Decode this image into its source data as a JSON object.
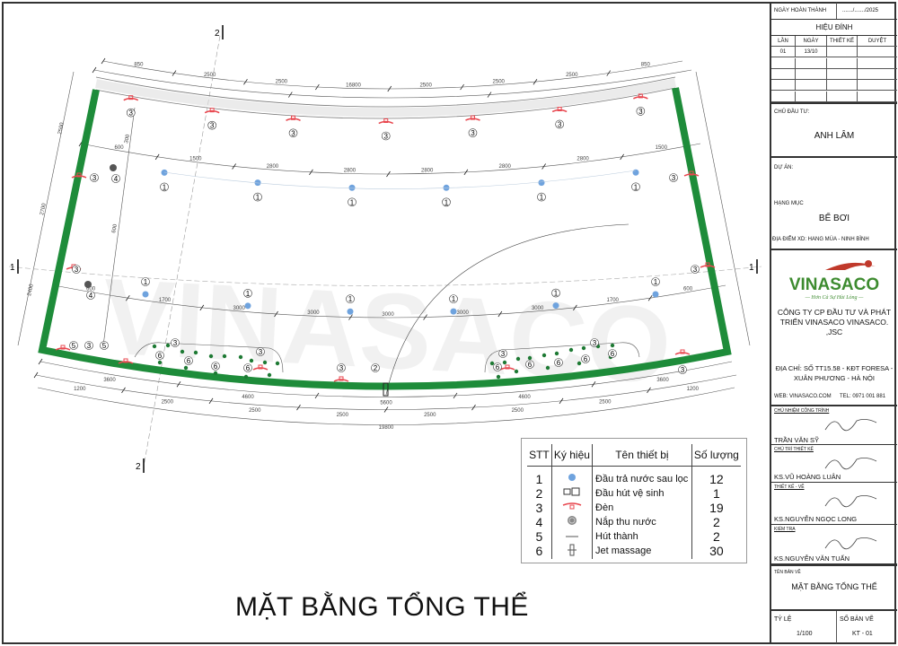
{
  "drawing": {
    "title": "MẶT BẰNG TỔNG THỂ",
    "section_marks": {
      "top": "2",
      "bottom": "2",
      "left": "1",
      "right": "1"
    },
    "dimensions_top": [
      "850",
      "2500",
      "2500",
      "16800",
      "2500",
      "2500",
      "2500",
      "850"
    ],
    "dimensions_inner": [
      "600",
      "1500",
      "2800",
      "2800",
      "2800",
      "2800",
      "2800",
      "1500"
    ],
    "dimensions_lower": [
      "600",
      "1700",
      "3000",
      "3000",
      "3000",
      "3000",
      "3000",
      "1700",
      "600"
    ],
    "dimensions_bottom": [
      "3600",
      "4600",
      "5600",
      "4600",
      "3600"
    ],
    "dimensions_bottom2": [
      "1200",
      "2500",
      "2500",
      "2500",
      "2500",
      "2500",
      "2500",
      "1200"
    ],
    "dimension_total": "19800",
    "dimensions_side": [
      "2500",
      "2700",
      "2400",
      "300",
      "600"
    ],
    "watermark": "VINASACO",
    "colors": {
      "wall": "#1e8c3a",
      "lamp": "#e8474f",
      "inlet": "#6fa3de",
      "jet": "#1e7a34",
      "drain": "#555555"
    }
  },
  "legend": {
    "headers": [
      "STT",
      "Ký hiệu",
      "Tên thiết bị",
      "Số lượng"
    ],
    "rows": [
      {
        "stt": "1",
        "icon": "inlet-icon",
        "name": "Đầu trả nước sau lọc",
        "qty": "12"
      },
      {
        "stt": "2",
        "icon": "vacuum-head-icon",
        "name": "Đầu hút vệ sinh",
        "qty": "1"
      },
      {
        "stt": "3",
        "icon": "lamp-icon",
        "name": "Đèn",
        "qty": "19"
      },
      {
        "stt": "4",
        "icon": "drain-cover-icon",
        "name": "Nắp thu nước",
        "qty": "2"
      },
      {
        "stt": "5",
        "icon": "skimmer-icon",
        "name": "Hút thành",
        "qty": "2"
      },
      {
        "stt": "6",
        "icon": "jet-icon",
        "name": "Jet massage",
        "qty": "30"
      }
    ]
  },
  "title_block": {
    "completion_label": "NGÀY HOÀN THÀNH",
    "completion_value": "......./......./2025",
    "revision_title": "HIỆU ĐÍNH",
    "revision_headers": [
      "LẦN",
      "NGÀY",
      "THIẾT KẾ",
      "DUYỆT"
    ],
    "revision_rows": [
      [
        "01",
        "13/10",
        "",
        ""
      ],
      [
        "",
        "",
        "",
        ""
      ],
      [
        "",
        "",
        "",
        ""
      ],
      [
        "",
        "",
        "",
        ""
      ],
      [
        "",
        "",
        "",
        ""
      ]
    ],
    "owner_label": "CHỦ ĐẦU TƯ:",
    "owner": "ANH LÂM",
    "project_label": "DỰ ÁN:",
    "item_label": "HẠNG MỤC",
    "item": "BỂ BƠI",
    "location": "ĐỊA ĐIỂM XD: HANG MÚA - NINH BÌNH",
    "logo_text": "VINASACO",
    "logo_slogan": "Hơn Cả Sự Hài Lòng",
    "company": "CÔNG TY CP ĐẦU TƯ VÀ PHÁT TRIỂN VINASACO VINASACO. ,JSC",
    "address": "ĐỊA CHỈ: SỐ TT15.58 - KĐT FORESA - XUÂN PHƯƠNG - HÀ NỘI",
    "web": "WEB: VINASACO.COM",
    "tel": "TEL: 0971 001 881",
    "signatures": [
      {
        "role": "CHỦ NHIỆM CÔNG TRÌNH",
        "name": "TRẦN VĂN SỸ"
      },
      {
        "role": "CHỦ TRÌ THIẾT KẾ",
        "name": "KS.VŨ HOÀNG LUÂN"
      },
      {
        "role": "THIẾT KẾ - VẼ",
        "name": "KS.NGUYỄN NGỌC LONG"
      },
      {
        "role": "KIỂM TRA",
        "name": "KS.NGUYỄN VĂN TUẤN"
      }
    ],
    "sheet_name_label": "TÊN BẢN VẼ",
    "sheet_name": "MẶT BẰNG TỔNG THỂ",
    "scale_label": "TỶ LỆ",
    "scale": "1/100",
    "sheet_no_label": "SỐ BẢN VẼ",
    "sheet_no": "KT - 01"
  }
}
